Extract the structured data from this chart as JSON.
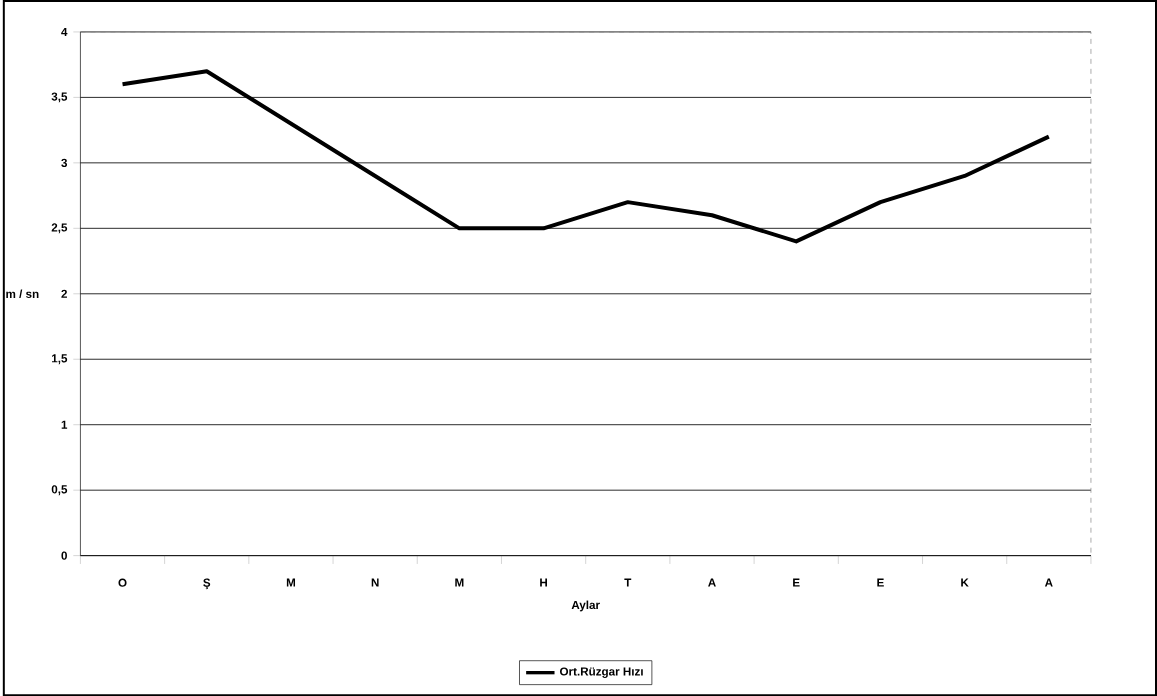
{
  "chart_data": {
    "type": "line",
    "xlabel": "Aylar",
    "ylabel": "m / sn",
    "categories": [
      "O",
      "Ş",
      "M",
      "N",
      "M",
      "H",
      "T",
      "A",
      "E",
      "E",
      "K",
      "A"
    ],
    "series": [
      {
        "name": "Ort.Rüzgar Hızı",
        "color": "#000000",
        "values": [
          3.6,
          3.7,
          3.3,
          2.9,
          2.5,
          2.5,
          2.7,
          2.6,
          2.4,
          2.7,
          2.9,
          3.2
        ]
      }
    ],
    "ylim": [
      0,
      4
    ],
    "yticks": [
      0,
      {
        "value": 0.5,
        "label": "0,5"
      },
      1,
      {
        "value": 1.5,
        "label": "1,5"
      },
      2,
      {
        "value": 2.5,
        "label": "2,5"
      },
      3,
      {
        "value": 3.5,
        "label": "3,5"
      },
      4
    ],
    "grid": "y",
    "legend": "bottom",
    "marker": "none",
    "line_style": "solid"
  }
}
